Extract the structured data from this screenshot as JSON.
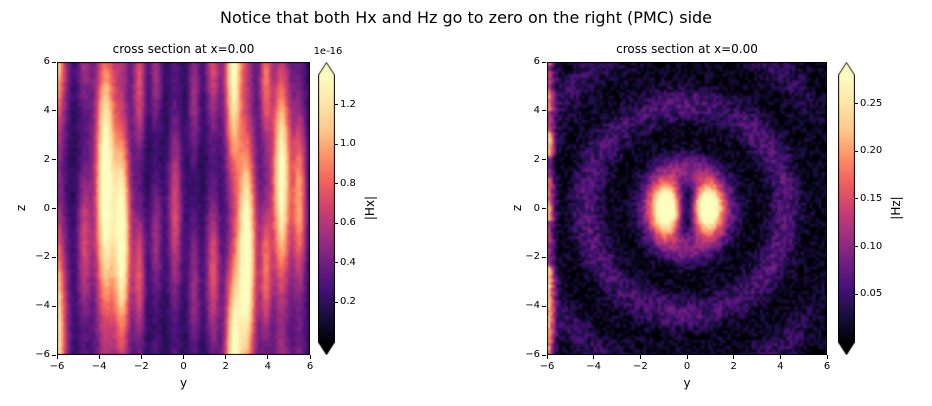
{
  "figure": {
    "suptitle": "Notice that both Hx and Hz go to zero on the right (PMC) side"
  },
  "chart_data": [
    {
      "type": "heatmap",
      "title": "cross section at x=0.00",
      "xlabel": "y",
      "ylabel": "z",
      "xlim": [
        -6,
        6
      ],
      "ylim": [
        -6,
        6
      ],
      "xtick_vals": [
        -6,
        -4,
        -2,
        0,
        2,
        4,
        6
      ],
      "xtick_labels": [
        "−6",
        "−4",
        "−2",
        "0",
        "2",
        "4",
        "6"
      ],
      "ytick_vals": [
        -6,
        -4,
        -2,
        0,
        2,
        4,
        6
      ],
      "ytick_labels": [
        "−6",
        "−4",
        "−2",
        "0",
        "2",
        "4",
        "6"
      ],
      "colormap": "magma",
      "colorbar": {
        "label": "|Hx|",
        "offset_text": "1e-16",
        "tick_vals": [
          0.2,
          0.4,
          0.6,
          0.8,
          1.0,
          1.2
        ],
        "tick_labels": [
          "0.2",
          "0.4",
          "0.6",
          "0.8",
          "1.0",
          "1.2"
        ],
        "vmin": 0.0,
        "vmax": 1.35,
        "extend": "both"
      },
      "field": {
        "kind": "vertical-stripes",
        "note": "|Hx| is at numerical-zero level (~1e-16): bright vertical bands in y, slowly modulated along z",
        "background": 0.1,
        "noise": 0.06,
        "seed": 11,
        "stripes": [
          {
            "y": -6.1,
            "w": 0.55,
            "amp": 0.9,
            "zf": 0.5,
            "zp": 2.5
          },
          {
            "y": -4.7,
            "w": 0.35,
            "amp": 0.4,
            "zf": 0.7,
            "zp": 1.0
          },
          {
            "y": -3.7,
            "w": 0.5,
            "amp": 1.0,
            "zf": 0.4,
            "zp": -0.4
          },
          {
            "y": -2.9,
            "w": 0.4,
            "amp": 0.92,
            "zf": 0.5,
            "zp": 0.6
          },
          {
            "y": -2.1,
            "w": 0.3,
            "amp": 0.45,
            "zf": 0.8,
            "zp": 2.2
          },
          {
            "y": -1.3,
            "w": 0.3,
            "amp": 0.3,
            "zf": 0.9,
            "zp": 1.2
          },
          {
            "y": -0.4,
            "w": 0.35,
            "amp": 0.42,
            "zf": 0.6,
            "zp": 0.1
          },
          {
            "y": 0.5,
            "w": 0.3,
            "amp": 0.3,
            "zf": 0.8,
            "zp": 2.5
          },
          {
            "y": 1.4,
            "w": 0.35,
            "amp": 0.45,
            "zf": 0.7,
            "zp": 1.8
          },
          {
            "y": 2.35,
            "w": 0.4,
            "amp": 0.88,
            "zf": 0.5,
            "zp": 3.3
          },
          {
            "y": 3.0,
            "w": 0.45,
            "amp": 1.0,
            "zf": 0.45,
            "zp": 0.9
          },
          {
            "y": 3.9,
            "w": 0.3,
            "amp": 0.5,
            "zf": 0.8,
            "zp": 2.0
          },
          {
            "y": 4.65,
            "w": 0.45,
            "amp": 0.92,
            "zf": 0.5,
            "zp": -0.6
          },
          {
            "y": 5.5,
            "w": 0.35,
            "amp": 0.6,
            "zf": 0.6,
            "zp": -0.2
          }
        ]
      }
    },
    {
      "type": "heatmap",
      "title": "cross section at x=0.00",
      "xlabel": "y",
      "ylabel": "z",
      "xlim": [
        -6,
        6
      ],
      "ylim": [
        -6,
        6
      ],
      "xtick_vals": [
        -6,
        -4,
        -2,
        0,
        2,
        4,
        6
      ],
      "xtick_labels": [
        "−6",
        "−4",
        "−2",
        "0",
        "2",
        "4",
        "6"
      ],
      "ytick_vals": [
        -6,
        -4,
        -2,
        0,
        2,
        4,
        6
      ],
      "ytick_labels": [
        "−6",
        "−4",
        "−2",
        "0",
        "2",
        "4",
        "6"
      ],
      "colormap": "magma",
      "colorbar": {
        "label": "|Hz|",
        "tick_vals": [
          0.05,
          0.1,
          0.15,
          0.2,
          0.25
        ],
        "tick_labels": [
          "0.05",
          "0.10",
          "0.15",
          "0.20",
          "0.25"
        ],
        "vmin": 0.0,
        "vmax": 0.28,
        "extend": "both"
      },
      "field": {
        "kind": "radial-rings",
        "note": "bright double lobe at origin (dark slit at y=0), concentric ripples decaying outward, speckle texture, bright segments on left edge, field damped to zero at right (PMC) edge",
        "lobe": {
          "y_offset": 0.85,
          "sy": 0.62,
          "sz": 0.95,
          "amp": 1.25,
          "slit_depth": 0.55,
          "slit_w": 0.28
        },
        "rings": {
          "k": 2.35,
          "phase": 2.4,
          "amp": 0.42,
          "decay": 6.0
        },
        "stripe_mod": {
          "k": 1.5,
          "phase": 0.6,
          "depth": 0.25
        },
        "left_edge": {
          "amp": 0.85,
          "w": 0.3
        },
        "noise": 0.2,
        "seed": 5
      }
    }
  ]
}
